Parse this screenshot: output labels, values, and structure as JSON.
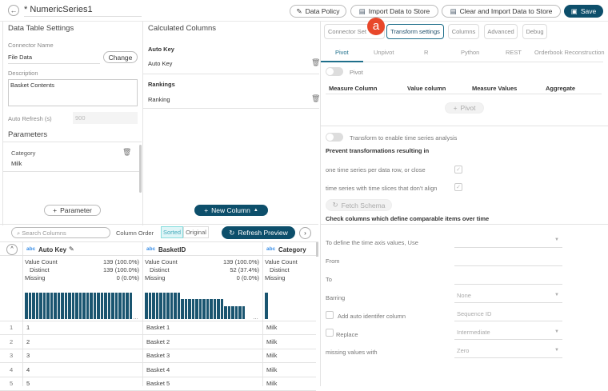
{
  "header": {
    "title": "* NumericSeries1",
    "data_policy": "Data Policy",
    "import": "Import Data to Store",
    "clear_import": "Clear and Import Data to Store",
    "save": "Save",
    "badge": "a"
  },
  "left": {
    "title": "Data Table Settings",
    "connector_label": "Connector Name",
    "connector_value": "File Data",
    "change": "Change",
    "description_label": "Description",
    "description_value": "Basket Contents",
    "auto_refresh_label": "Auto Refresh (s)",
    "auto_refresh_value": "900",
    "parameters_title": "Parameters",
    "param_name": "Category",
    "param_value": "Milk",
    "add_parameter": "Parameter"
  },
  "calc": {
    "title": "Calculated Columns",
    "groups": [
      {
        "title": "Auto Key",
        "item": "Auto Key"
      },
      {
        "title": "Rankings",
        "item": "Ranking"
      }
    ],
    "new_column": "New Column"
  },
  "preview": {
    "search_placeholder": "Search Columns",
    "column_order": "Column Order",
    "sorted": "Sorted",
    "original": "Original",
    "refresh": "Refresh Preview",
    "type_tag": "abc",
    "columns": [
      {
        "name": "Auto Key",
        "stats": [
          [
            "Value Count",
            "139 (100.0%)"
          ],
          [
            "Distinct",
            "139 (100.0%)"
          ],
          [
            "Missing",
            "0 (0.0%)"
          ]
        ],
        "hist": [
          1,
          1,
          1,
          1,
          1,
          1,
          1,
          1,
          1,
          1,
          1,
          1,
          1,
          1,
          1,
          1,
          1,
          1,
          1,
          1,
          1,
          1,
          1,
          1,
          1,
          1,
          1,
          1,
          1,
          1
        ]
      },
      {
        "name": "BasketID",
        "stats": [
          [
            "Value Count",
            "139 (100.0%)"
          ],
          [
            "Distinct",
            "52 (37.4%)"
          ],
          [
            "Missing",
            "0 (0.0%)"
          ]
        ],
        "hist": [
          1,
          1,
          1,
          1,
          1,
          1,
          1,
          1,
          1,
          1,
          0.75,
          0.75,
          0.75,
          0.75,
          0.75,
          0.75,
          0.75,
          0.75,
          0.75,
          0.75,
          0.75,
          0.75,
          0.5,
          0.5,
          0.5,
          0.5,
          0.5,
          0.5
        ]
      },
      {
        "name": "Category",
        "stats": [
          [
            "Value Count",
            ""
          ],
          [
            "Distinct",
            ""
          ],
          [
            "Missing",
            ""
          ]
        ],
        "hist": [
          1
        ]
      }
    ],
    "rows": [
      [
        "1",
        "1",
        "Basket 1",
        "Milk"
      ],
      [
        "2",
        "2",
        "Basket 2",
        "Milk"
      ],
      [
        "3",
        "3",
        "Basket 3",
        "Milk"
      ],
      [
        "4",
        "4",
        "Basket 4",
        "Milk"
      ],
      [
        "5",
        "5",
        "Basket 5",
        "Milk"
      ]
    ]
  },
  "right": {
    "tabs": [
      "Connector Settings",
      "Transform settings",
      "Columns",
      "Advanced",
      "Debug"
    ],
    "subtabs": [
      "Pivot",
      "Unpivot",
      "R",
      "Python",
      "REST",
      "Orderbook Reconstruction"
    ],
    "pivot_toggle": "Pivot",
    "pivot_cols": [
      "Measure Column",
      "Value column",
      "Measure Values",
      "Aggregate"
    ],
    "add_pivot": "Pivot",
    "ts_toggle": "Transform to enable time series analysis",
    "prevent": "Prevent transformations resulting in",
    "check1": "one time series per data row, or close",
    "check2": "time series with time slices that don't align",
    "fetch": "Fetch Schema",
    "check_cols": "Check columns which define comparable items over time",
    "time_axis": "To define the time axis values, Use",
    "from": "From",
    "to": "To",
    "barring": "Barring",
    "barring_value": "None",
    "auto_id": "Add auto identifer column",
    "auto_id_value": "Sequence ID",
    "replace": "Replace",
    "replace_value": "Intermediate",
    "missing": "missing values with",
    "missing_value": "Zero"
  }
}
